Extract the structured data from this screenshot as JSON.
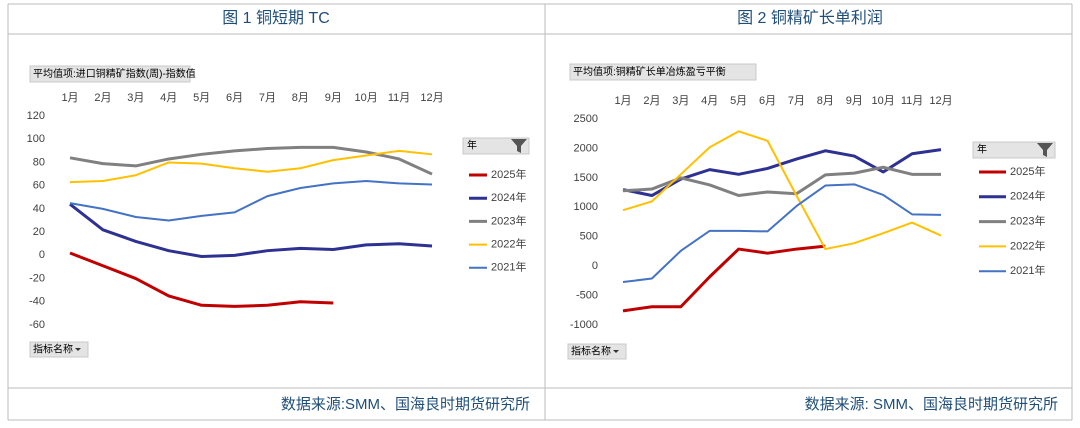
{
  "chart_data": [
    {
      "type": "line",
      "title": "图 1 铜短期 TC",
      "field_button": "平均值项:进口铜精矿指数(周)-指数值",
      "axis_button": "指标名称",
      "legend_title": "年",
      "source": "数据来源:SMM、国海良时期货研究所",
      "categories": [
        "1月",
        "2月",
        "3月",
        "4月",
        "5月",
        "6月",
        "7月",
        "8月",
        "9月",
        "10月",
        "11月",
        "12月"
      ],
      "ylim": [
        -60,
        120
      ],
      "yticks": [
        -60,
        -40,
        -20,
        0,
        20,
        40,
        60,
        80,
        100,
        120
      ],
      "series": [
        {
          "name": "2025年",
          "color": "#c00000",
          "values": [
            2,
            -9,
            -20,
            -35,
            -43,
            -44,
            -43,
            -40,
            -41,
            null,
            null,
            null
          ]
        },
        {
          "name": "2024年",
          "color": "#2e3192",
          "values": [
            44,
            22,
            12,
            4,
            -1,
            0,
            4,
            6,
            5,
            9,
            10,
            8
          ]
        },
        {
          "name": "2023年",
          "color": "#808080",
          "values": [
            84,
            79,
            77,
            83,
            87,
            90,
            92,
            93,
            93,
            89,
            83,
            70
          ]
        },
        {
          "name": "2022年",
          "color": "#ffc000",
          "values": [
            63,
            64,
            69,
            80,
            79,
            75,
            72,
            75,
            82,
            86,
            90,
            87
          ]
        },
        {
          "name": "2021年",
          "color": "#4472c4",
          "values": [
            45,
            40,
            33,
            30,
            34,
            37,
            51,
            58,
            62,
            64,
            62,
            61
          ]
        }
      ]
    },
    {
      "type": "line",
      "title": "图 2 铜精矿长单利润",
      "field_button": "平均值项:铜精矿长单冶炼盈亏平衡",
      "axis_button": "指标名称",
      "legend_title": "年",
      "source": "数据来源: SMM、国海良时期货研究所",
      "categories": [
        "1月",
        "2月",
        "3月",
        "4月",
        "5月",
        "6月",
        "7月",
        "8月",
        "9月",
        "10月",
        "11月",
        "12月"
      ],
      "ylim": [
        -1000,
        2500
      ],
      "yticks": [
        -1000,
        -500,
        0,
        500,
        1000,
        1500,
        2000,
        2500
      ],
      "series": [
        {
          "name": "2025年",
          "color": "#c00000",
          "values": [
            -760,
            -690,
            -690,
            -180,
            290,
            220,
            290,
            340,
            null,
            null,
            null,
            null
          ]
        },
        {
          "name": "2024年",
          "color": "#2e3192",
          "values": [
            1300,
            1200,
            1480,
            1640,
            1560,
            1660,
            1820,
            1960,
            1870,
            1600,
            1910,
            1980
          ]
        },
        {
          "name": "2023年",
          "color": "#808080",
          "values": [
            1280,
            1310,
            1500,
            1380,
            1200,
            1260,
            1230,
            1550,
            1580,
            1680,
            1560,
            1560
          ]
        },
        {
          "name": "2022年",
          "color": "#ffc000",
          "values": [
            950,
            1100,
            1560,
            2020,
            2290,
            2130,
            1200,
            290,
            390,
            560,
            740,
            520
          ]
        },
        {
          "name": "2021年",
          "color": "#4472c4",
          "values": [
            -270,
            -210,
            260,
            600,
            600,
            590,
            1020,
            1370,
            1390,
            1210,
            880,
            870
          ]
        }
      ]
    }
  ]
}
